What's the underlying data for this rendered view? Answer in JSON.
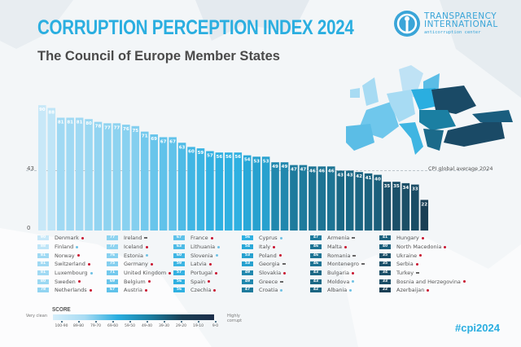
{
  "header": {
    "title": "CORRUPTION PERCEPTION INDEX 2024",
    "subtitle": "The Council of Europe Member States",
    "logo_line1": "TRANSPARENCY",
    "logo_line2": "INTERNATIONAL",
    "logo_line3": "anticorruption center"
  },
  "hashtag": "#cpi2024",
  "colors": {
    "title": "#2aaee0",
    "trend_down": "#c8102e",
    "trend_up": "#6ec1e4",
    "trend_same": "#666666"
  },
  "legend": {
    "title": "SCORE",
    "left_label": "Very clean",
    "right_label": "Highly corrupt",
    "ranges": [
      "100-90",
      "89-80",
      "79-70",
      "69-60",
      "59-50",
      "49-40",
      "39-30",
      "29-20",
      "19-10",
      "9-0"
    ]
  },
  "chart_data": {
    "type": "bar",
    "title": "CORRUPTION PERCEPTION INDEX 2024",
    "subtitle": "The Council of Europe Member States",
    "xlabel": "",
    "ylabel": "",
    "ylim": [
      0,
      100
    ],
    "yticks": [
      0,
      43
    ],
    "reference_line": {
      "value": 43,
      "label": "CPI global average 2024"
    },
    "categories": [
      "Denmark",
      "Finland",
      "Norway",
      "Switzerland",
      "Luxembourg",
      "Sweden",
      "Netherlands",
      "Ireland",
      "Iceland",
      "Estonia",
      "Germany",
      "United Kingdom",
      "Belgium",
      "Austria",
      "France",
      "Lithuania",
      "Slovenia",
      "Latvia",
      "Portugal",
      "Spain",
      "Czechia",
      "Cyprus",
      "Italy",
      "Poland",
      "Georgia",
      "Slovakia",
      "Greece",
      "Croatia",
      "Armenia",
      "Malta",
      "Romania",
      "Montenegro",
      "Bulgaria",
      "Moldova",
      "Albania",
      "Hungary",
      "North Macedonia",
      "Ukraine",
      "Serbia",
      "Turkey",
      "Bosnia and Herzegovina",
      "Azerbaijan"
    ],
    "values": [
      90,
      88,
      81,
      81,
      81,
      80,
      78,
      77,
      77,
      76,
      75,
      71,
      69,
      67,
      67,
      63,
      60,
      59,
      57,
      56,
      56,
      56,
      54,
      53,
      53,
      49,
      49,
      47,
      47,
      46,
      46,
      46,
      43,
      43,
      42,
      41,
      40,
      35,
      35,
      34,
      33,
      22
    ],
    "trends": [
      "down",
      "up",
      "down",
      "down",
      "up",
      "down",
      "down",
      "same",
      "down",
      "up",
      "down",
      "down",
      "down",
      "down",
      "down",
      "up",
      "up",
      "down",
      "down",
      "down",
      "down",
      "up",
      "down",
      "down",
      "same",
      "down",
      "same",
      "up",
      "same",
      "down",
      "same",
      "same",
      "down",
      "up",
      "up",
      "down",
      "down",
      "down",
      "down",
      "same",
      "down",
      "down"
    ],
    "grid": false,
    "legend_position": "bottom-left"
  }
}
